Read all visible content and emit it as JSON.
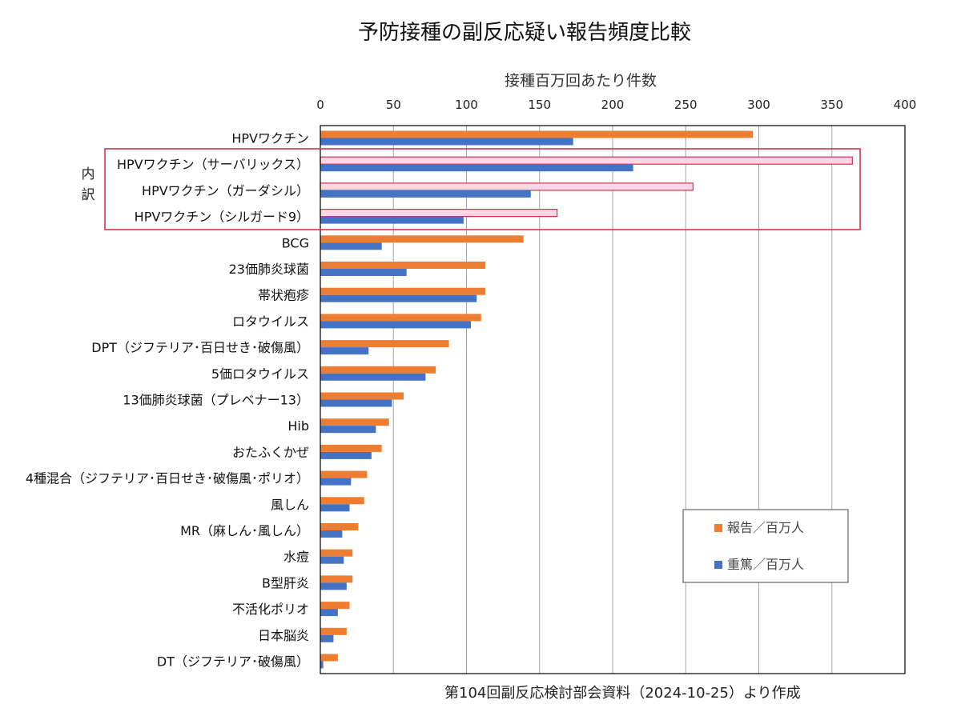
{
  "title": "予防接種の副反応疑い報告頻度比較",
  "source_note": "第104回副反応検討部会資料（2024-10-25）より作成",
  "breakdown_label": "内訳",
  "colors": {
    "report": "#ed7d31",
    "serious": "#4472c4",
    "highlight_fill": "#ffd6e6",
    "highlight_stroke": "#d9304a",
    "grid": "#a6a6a6",
    "frame": "#000000"
  },
  "chart_data": {
    "type": "bar",
    "orientation": "horizontal",
    "x_axis_title": "接種百万回あたり件数",
    "xlim": [
      0,
      400
    ],
    "xticks": [
      0,
      50,
      100,
      150,
      200,
      250,
      300,
      350,
      400
    ],
    "categories": [
      "HPVワクチン",
      "HPVワクチン（サーバリックス）",
      "HPVワクチン（ガーダシル）",
      "HPVワクチン（シルガード9）",
      "BCG",
      "23価肺炎球菌",
      "帯状疱疹",
      "ロタウイルス",
      "DPT（ジフテリア･百日せき･破傷風）",
      "5価ロタウイルス",
      "13価肺炎球菌（プレベナー13）",
      "Hib",
      "おたふくかぜ",
      "4種混合（ジフテリア･百日せき･破傷風･ポリオ）",
      "風しん",
      "MR（麻しん･風しん）",
      "水痘",
      "B型肝炎",
      "不活化ポリオ",
      "日本脳炎",
      "DT（ジフテリア･破傷風）"
    ],
    "highlighted_categories": [
      1,
      2,
      3
    ],
    "series": [
      {
        "name": "報告／百万人",
        "values": [
          296,
          364,
          255,
          162,
          139,
          113,
          113,
          110,
          88,
          79,
          57,
          47,
          42,
          32,
          30,
          26,
          22,
          22,
          20,
          18,
          12
        ]
      },
      {
        "name": "重篤／百万人",
        "values": [
          173,
          214,
          144,
          98,
          42,
          59,
          107,
          103,
          33,
          72,
          49,
          38,
          35,
          21,
          20,
          15,
          16,
          18,
          12,
          9,
          2
        ]
      }
    ]
  }
}
